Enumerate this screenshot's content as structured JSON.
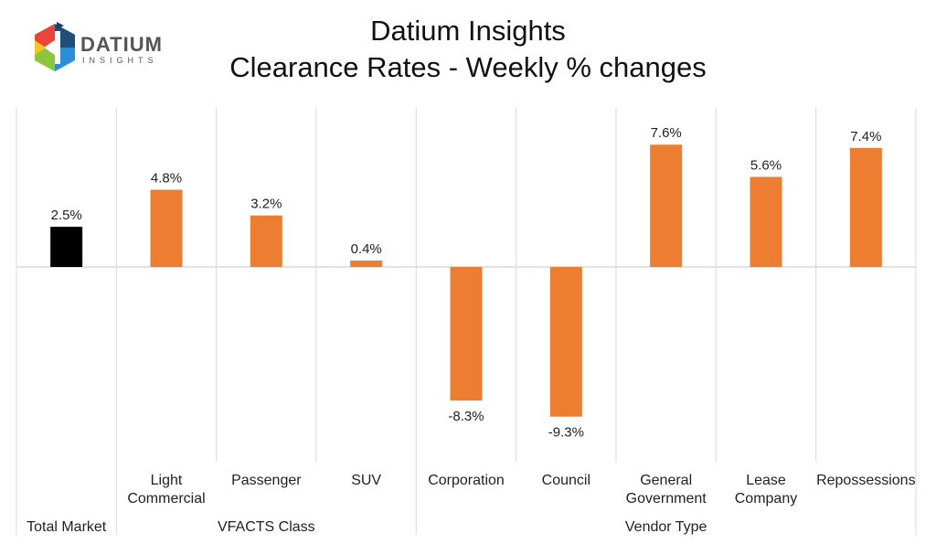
{
  "logo": {
    "name": "DATIUM",
    "sub": "INSIGHTS"
  },
  "chart_data": {
    "type": "bar",
    "title": "Datium Insights",
    "subtitle": "Clearance Rates - Weekly % changes",
    "categories": [
      "Total Market",
      "Light Commercial",
      "Passenger",
      "SUV",
      "Corporation",
      "Council",
      "General Government",
      "Lease Company",
      "Repossessions"
    ],
    "category_lines": [
      [
        "Total Market"
      ],
      [
        "Light",
        "Commercial"
      ],
      [
        "Passenger"
      ],
      [
        "SUV"
      ],
      [
        "Corporation"
      ],
      [
        "Council"
      ],
      [
        "General",
        "Government"
      ],
      [
        "Lease",
        "Company"
      ],
      [
        "Repossessions"
      ]
    ],
    "groups": [
      {
        "label": "Total Market",
        "start": 0,
        "end": 0
      },
      {
        "label": "VFACTS Class",
        "start": 1,
        "end": 3
      },
      {
        "label": "Vendor Type",
        "start": 4,
        "end": 8
      }
    ],
    "values": [
      2.5,
      4.8,
      3.2,
      0.4,
      -8.3,
      -9.3,
      7.6,
      5.6,
      7.4
    ],
    "data_labels": [
      "2.5%",
      "4.8%",
      "3.2%",
      "0.4%",
      "-8.3%",
      "-9.3%",
      "7.6%",
      "5.6%",
      "7.4%"
    ],
    "colors": {
      "highlight": "#000000",
      "default": "#ED7D31",
      "grid": "#D9D9D9"
    },
    "highlight_index": 0,
    "ylim": [
      -10,
      10
    ],
    "grid": false,
    "legend": "none"
  }
}
